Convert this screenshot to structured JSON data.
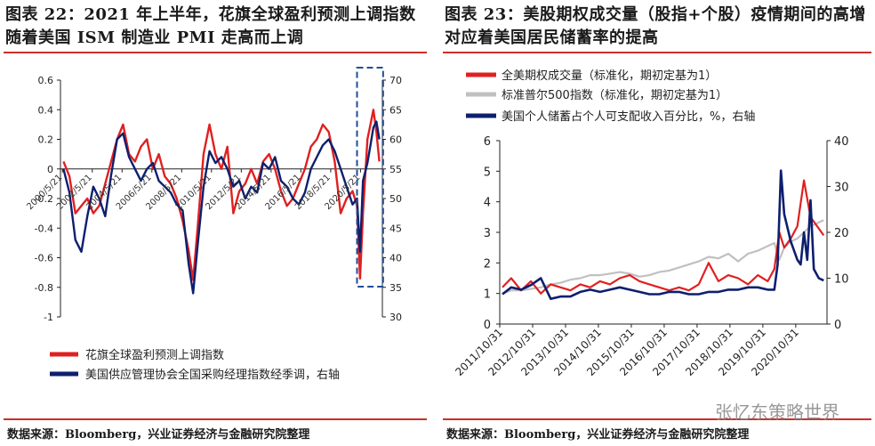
{
  "left": {
    "title": "图表 22：2021 年上半年，花旗全球盈利预测上调指数随着美国 ISM 制造业 PMI 走高而上调",
    "source": "数据来源：Bloomberg，兴业证券经济与金融研究院整理"
  },
  "right": {
    "title": "图表 23：美股期权成交量（股指+个股）疫情期间的高增对应着美国居民储蓄率的提高",
    "source": "数据来源：Bloomberg，兴业证券经济与金融研究院整理"
  },
  "watermark": "张忆东策略世界",
  "colors": {
    "red": "#e02020",
    "navy": "#0d1f6e",
    "gray": "#c0c0c0",
    "rule": "#c9302c"
  },
  "chart_data": [
    {
      "type": "line",
      "x_ticks": [
        "2000/5/21",
        "2002/5/21",
        "2004/5/21",
        "2006/5/21",
        "2008/5/21",
        "2010/5/21",
        "2012/5/21",
        "2014/5/21",
        "2016/5/21",
        "2018/5/21",
        "2020/5/21"
      ],
      "ylim": [
        -1,
        0.6
      ],
      "y_ticks": [
        0.6,
        0.4,
        0.2,
        0,
        -0.2,
        -0.4,
        -0.6,
        -0.8,
        -1
      ],
      "y2lim": [
        30,
        70
      ],
      "y2_ticks": [
        70,
        65,
        60,
        55,
        50,
        45,
        40,
        35,
        30
      ],
      "legend_position": "bottom",
      "highlight": "2020-2021",
      "series": [
        {
          "name": "花旗全球盈利预测上调指数",
          "axis": "left",
          "color": "#e02020",
          "x": [
            2000.4,
            2000.8,
            2001.2,
            2001.6,
            2002.0,
            2002.4,
            2002.8,
            2003.2,
            2003.6,
            2004.0,
            2004.4,
            2004.8,
            2005.2,
            2005.6,
            2006.0,
            2006.4,
            2006.8,
            2007.2,
            2007.6,
            2008.0,
            2008.4,
            2008.8,
            2009.1,
            2009.4,
            2009.8,
            2010.2,
            2010.6,
            2011.0,
            2011.4,
            2011.8,
            2012.2,
            2012.6,
            2013.0,
            2013.4,
            2013.8,
            2014.2,
            2014.6,
            2015.0,
            2015.4,
            2015.8,
            2016.2,
            2016.6,
            2017.0,
            2017.4,
            2017.8,
            2018.2,
            2018.6,
            2019.0,
            2019.4,
            2019.8,
            2020.1,
            2020.3,
            2020.5,
            2020.8,
            2021.0,
            2021.2,
            2021.4,
            2021.6
          ],
          "y": [
            0.05,
            -0.05,
            -0.3,
            -0.25,
            -0.2,
            -0.3,
            -0.25,
            -0.1,
            0.05,
            0.2,
            0.3,
            0.1,
            0.05,
            0.15,
            0.2,
            0.0,
            0.1,
            -0.05,
            -0.1,
            -0.2,
            -0.35,
            -0.55,
            -0.75,
            -0.4,
            0.1,
            0.3,
            0.1,
            0.0,
            0.15,
            -0.3,
            -0.15,
            -0.1,
            0.0,
            -0.1,
            0.05,
            0.1,
            0.0,
            -0.15,
            -0.25,
            -0.2,
            -0.1,
            0.0,
            0.15,
            0.2,
            0.3,
            0.25,
            0.05,
            -0.3,
            -0.2,
            -0.15,
            -0.25,
            -0.74,
            -0.3,
            0.2,
            0.3,
            0.4,
            0.25,
            0.05
          ]
        },
        {
          "name": "美国供应管理协会全国采购经理指数经季调，右轴",
          "axis": "right",
          "color": "#0d1f6e",
          "x": [
            2000.4,
            2000.8,
            2001.2,
            2001.6,
            2002.0,
            2002.4,
            2002.8,
            2003.2,
            2003.6,
            2004.0,
            2004.4,
            2004.8,
            2005.2,
            2005.6,
            2006.0,
            2006.4,
            2006.8,
            2007.2,
            2007.6,
            2008.0,
            2008.4,
            2008.8,
            2009.1,
            2009.4,
            2009.8,
            2010.2,
            2010.6,
            2011.0,
            2011.4,
            2011.8,
            2012.2,
            2012.6,
            2013.0,
            2013.4,
            2013.8,
            2014.2,
            2014.6,
            2015.0,
            2015.4,
            2015.8,
            2016.2,
            2016.6,
            2017.0,
            2017.4,
            2017.8,
            2018.2,
            2018.6,
            2019.0,
            2019.4,
            2019.8,
            2020.1,
            2020.3,
            2020.5,
            2020.8,
            2021.0,
            2021.2,
            2021.4,
            2021.6
          ],
          "y": [
            55,
            51,
            43,
            41,
            47,
            52,
            50,
            47,
            54,
            60,
            61,
            57,
            55,
            53,
            55,
            56,
            53,
            52,
            51,
            49,
            48,
            39,
            34,
            42,
            52,
            58,
            56,
            57,
            55,
            52,
            53,
            50,
            52,
            51,
            56,
            55,
            57,
            53,
            52,
            50,
            49,
            51,
            55,
            57,
            59,
            60,
            58,
            55,
            52,
            49,
            50,
            41,
            53,
            56,
            59,
            62,
            63,
            60
          ]
        }
      ]
    },
    {
      "type": "line",
      "x_ticks": [
        "2011/10/31",
        "2012/10/31",
        "2013/10/31",
        "2014/10/31",
        "2015/10/31",
        "2016/10/31",
        "2017/10/31",
        "2018/10/31",
        "2019/10/31",
        "2020/10/31"
      ],
      "ylim": [
        0,
        6
      ],
      "y_ticks": [
        6,
        5,
        4,
        3,
        2,
        1,
        0
      ],
      "y2lim": [
        0,
        40
      ],
      "y2_ticks": [
        40,
        30,
        20,
        10,
        0
      ],
      "legend_position": "top-left",
      "series": [
        {
          "name": "全美期权成交量（标准化，期初定基为1）",
          "axis": "left",
          "color": "#e02020",
          "x": [
            2011.83,
            2012.1,
            2012.4,
            2012.7,
            2013.0,
            2013.3,
            2013.6,
            2013.9,
            2014.2,
            2014.5,
            2014.8,
            2015.1,
            2015.4,
            2015.7,
            2016.0,
            2016.3,
            2016.6,
            2016.9,
            2017.2,
            2017.5,
            2017.8,
            2018.1,
            2018.4,
            2018.7,
            2019.0,
            2019.3,
            2019.6,
            2019.9,
            2020.1,
            2020.25,
            2020.4,
            2020.6,
            2020.8,
            2021.0,
            2021.2,
            2021.4,
            2021.6
          ],
          "y": [
            1.2,
            1.5,
            1.1,
            1.4,
            1.0,
            1.3,
            1.2,
            1.1,
            1.3,
            1.2,
            1.4,
            1.3,
            1.5,
            1.6,
            1.4,
            1.3,
            1.2,
            1.1,
            1.2,
            1.1,
            1.3,
            2.0,
            1.4,
            1.6,
            1.5,
            1.3,
            1.6,
            1.4,
            1.8,
            3.0,
            2.5,
            2.8,
            3.2,
            4.7,
            3.5,
            3.2,
            2.9
          ]
        },
        {
          "name": "标准普尔500指数（标准化，期初定基为1）",
          "axis": "left",
          "color": "#c0c0c0",
          "x": [
            2011.83,
            2012.1,
            2012.4,
            2012.7,
            2013.0,
            2013.3,
            2013.6,
            2013.9,
            2014.2,
            2014.5,
            2014.8,
            2015.1,
            2015.4,
            2015.7,
            2016.0,
            2016.3,
            2016.6,
            2016.9,
            2017.2,
            2017.5,
            2017.8,
            2018.1,
            2018.4,
            2018.7,
            2019.0,
            2019.3,
            2019.6,
            2019.9,
            2020.1,
            2020.25,
            2020.4,
            2020.6,
            2020.8,
            2021.0,
            2021.2,
            2021.4,
            2021.6
          ],
          "y": [
            1.0,
            1.1,
            1.1,
            1.15,
            1.2,
            1.3,
            1.35,
            1.45,
            1.5,
            1.6,
            1.6,
            1.65,
            1.7,
            1.65,
            1.55,
            1.6,
            1.7,
            1.75,
            1.85,
            1.95,
            2.05,
            2.2,
            2.15,
            2.3,
            2.05,
            2.3,
            2.4,
            2.55,
            2.65,
            2.1,
            2.5,
            2.7,
            2.8,
            3.0,
            3.2,
            3.3,
            3.4
          ]
        },
        {
          "name": "美国个人储蓄占个人可支配收入百分比，%，右轴",
          "axis": "right",
          "color": "#0d1f6e",
          "x": [
            2011.83,
            2012.1,
            2012.4,
            2012.7,
            2013.0,
            2013.3,
            2013.6,
            2013.9,
            2014.2,
            2014.5,
            2014.8,
            2015.1,
            2015.4,
            2015.7,
            2016.0,
            2016.3,
            2016.6,
            2016.9,
            2017.2,
            2017.5,
            2017.8,
            2018.1,
            2018.4,
            2018.7,
            2019.0,
            2019.3,
            2019.6,
            2019.9,
            2020.1,
            2020.2,
            2020.3,
            2020.4,
            2020.6,
            2020.8,
            2020.9,
            2021.0,
            2021.1,
            2021.2,
            2021.3,
            2021.45,
            2021.6
          ],
          "y": [
            6.5,
            8,
            7.5,
            8.5,
            10,
            5.5,
            6,
            6,
            7,
            7.5,
            7,
            7.5,
            8,
            7.5,
            7,
            6.5,
            6.5,
            7,
            7,
            6.5,
            6.5,
            7,
            7,
            7.5,
            7.5,
            8,
            8,
            7.5,
            7.5,
            13,
            33.5,
            24,
            18,
            14,
            13,
            20,
            14,
            27,
            12,
            10,
            9.5
          ]
        }
      ]
    }
  ]
}
